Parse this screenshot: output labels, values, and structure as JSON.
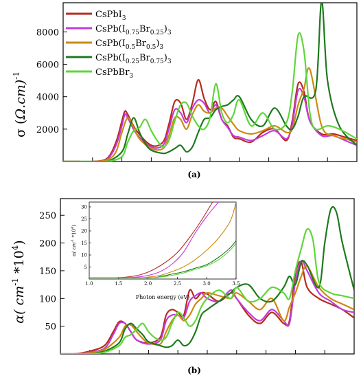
{
  "colors": {
    "CsPbI3": "#b52b1f",
    "CsPb(I0.75Br0.25)3": "#c23bde",
    "CsPb(I0.5Br0.5)3": "#cc8a10",
    "CsPb(I0.25Br0.75)3": "#1d7a1d",
    "CsPbBr3": "#5fd63a"
  },
  "legend": [
    {
      "key": "CsPbI3",
      "base": "CsPbI",
      "parts": [
        {
          "t": "3",
          "sub": true
        }
      ]
    },
    {
      "key": "CsPb(I0.75Br0.25)3",
      "base": "CsPb(I",
      "parts": [
        {
          "t": "0.75",
          "sub": true
        },
        {
          "t": "Br",
          "sub": false
        },
        {
          "t": "0.25",
          "sub": true
        },
        {
          "t": ")",
          "sub": false
        },
        {
          "t": "3",
          "sub": true
        }
      ]
    },
    {
      "key": "CsPb(I0.5Br0.5)3",
      "base": "CsPb(I",
      "parts": [
        {
          "t": "0.5",
          "sub": true
        },
        {
          "t": "Br",
          "sub": false
        },
        {
          "t": "0.5",
          "sub": true
        },
        {
          "t": ")",
          "sub": false
        },
        {
          "t": "3",
          "sub": true
        }
      ]
    },
    {
      "key": "CsPb(I0.25Br0.75)3",
      "base": "CsPb(I",
      "parts": [
        {
          "t": "0.25",
          "sub": true
        },
        {
          "t": "Br",
          "sub": false
        },
        {
          "t": "0.75",
          "sub": true
        },
        {
          "t": ")",
          "sub": false
        },
        {
          "t": "3",
          "sub": true
        }
      ]
    },
    {
      "key": "CsPbBr3",
      "base": "CsPbBr",
      "parts": [
        {
          "t": "3",
          "sub": true
        }
      ]
    }
  ],
  "chart_data": [
    {
      "panel_label": "(a)",
      "type": "line",
      "ylabel": "σ (Ω.cm)-1",
      "ylabel_text": "σ (",
      "ylabel_unit": "Ω.cm)",
      "ylabel_sup": "-1",
      "xlabel": "",
      "yticks": [
        2000,
        4000,
        6000,
        8000
      ],
      "ylim": [
        0,
        9800
      ],
      "xlim": [
        0,
        10
      ],
      "x_tick_labels_shown": false,
      "series": [
        {
          "name": "CsPbI3",
          "x": [
            0,
            0.5,
            1,
            1.5,
            1.8,
            2.0,
            2.1,
            2.2,
            2.5,
            3.0,
            3.4,
            3.6,
            3.8,
            4.0,
            4.2,
            4.4,
            4.6,
            4.8,
            5.0,
            5.2,
            5.4,
            5.6,
            5.8,
            6.0,
            6.4,
            6.8,
            7.2,
            7.6,
            7.8,
            8.0,
            8.2,
            8.4,
            8.8,
            9.2,
            9.6,
            10
          ],
          "y": [
            0,
            0,
            0,
            200,
            1200,
            2500,
            3100,
            2900,
            1900,
            1000,
            1200,
            2300,
            3700,
            3600,
            2600,
            3600,
            5050,
            3900,
            3200,
            3700,
            2600,
            2200,
            1500,
            1400,
            1200,
            1800,
            2000,
            1300,
            2500,
            4800,
            4300,
            2500,
            1700,
            1700,
            1500,
            1300
          ]
        },
        {
          "name": "CsPb(I0.75Br0.25)3",
          "x": [
            0,
            0.5,
            1,
            1.5,
            1.8,
            2.0,
            2.1,
            2.2,
            2.5,
            3.0,
            3.4,
            3.6,
            3.8,
            4.0,
            4.2,
            4.4,
            4.6,
            4.8,
            5.0,
            5.2,
            5.4,
            5.6,
            5.8,
            6.0,
            6.4,
            6.8,
            7.2,
            7.6,
            7.8,
            8.0,
            8.2,
            8.4,
            8.8,
            9.2,
            9.6,
            10
          ],
          "y": [
            0,
            0,
            0,
            150,
            1000,
            2200,
            2900,
            2700,
            1700,
            900,
            1000,
            2000,
            3200,
            3000,
            2400,
            3300,
            3800,
            3600,
            3000,
            3500,
            2600,
            2100,
            1600,
            1500,
            1300,
            1600,
            1900,
            1400,
            2300,
            4400,
            4000,
            2500,
            1600,
            1600,
            1300,
            1000
          ]
        },
        {
          "name": "CsPb(I0.5Br0.5)3",
          "x": [
            0,
            0.5,
            1,
            1.5,
            1.8,
            2.0,
            2.2,
            2.4,
            2.6,
            3.0,
            3.4,
            3.6,
            3.8,
            4.0,
            4.2,
            4.4,
            4.6,
            4.8,
            5.0,
            5.2,
            5.4,
            5.6,
            5.8,
            6.0,
            6.4,
            6.8,
            7.2,
            7.6,
            7.8,
            8.0,
            8.2,
            8.4,
            8.8,
            9.2,
            9.6,
            10
          ],
          "y": [
            0,
            0,
            0,
            100,
            600,
            1800,
            2700,
            2100,
            1400,
            800,
            800,
            1600,
            2700,
            2600,
            2000,
            2900,
            3500,
            3100,
            3000,
            3300,
            3300,
            2800,
            2300,
            1900,
            1700,
            1900,
            2200,
            1800,
            2000,
            3500,
            4500,
            5700,
            2200,
            1600,
            1400,
            1200
          ]
        },
        {
          "name": "CsPb(I0.25Br0.75)3",
          "x": [
            0,
            0.5,
            1,
            1.5,
            2.0,
            2.2,
            2.4,
            2.6,
            2.8,
            3.0,
            3.4,
            3.6,
            3.8,
            4.0,
            4.2,
            4.4,
            4.6,
            4.8,
            5.0,
            5.2,
            5.4,
            5.6,
            5.8,
            6.0,
            6.4,
            6.8,
            7.2,
            7.6,
            7.8,
            8.0,
            8.2,
            8.6,
            8.8,
            9.0,
            9.4,
            10
          ],
          "y": [
            0,
            0,
            0,
            0,
            600,
            1700,
            2700,
            1800,
            1100,
            700,
            500,
            600,
            800,
            1000,
            600,
            900,
            1800,
            2600,
            2700,
            3200,
            3400,
            3500,
            3800,
            4000,
            2600,
            2200,
            3300,
            2200,
            2000,
            2800,
            4000,
            4400,
            9900,
            5000,
            2200,
            1000
          ]
        },
        {
          "name": "CsPbBr3",
          "x": [
            0,
            0.5,
            1,
            1.5,
            2.0,
            2.2,
            2.4,
            2.6,
            2.8,
            3.0,
            3.2,
            3.4,
            3.6,
            3.8,
            4.0,
            4.2,
            4.4,
            4.6,
            4.8,
            5.0,
            5.2,
            5.4,
            5.6,
            5.8,
            6.0,
            6.4,
            6.8,
            7.2,
            7.6,
            7.8,
            8.0,
            8.2,
            8.4,
            8.6,
            9.0,
            9.4,
            10
          ],
          "y": [
            0,
            0,
            0,
            0,
            300,
            1200,
            1900,
            2100,
            2600,
            1900,
            1300,
            900,
            1300,
            2500,
            3500,
            3600,
            2800,
            2200,
            2000,
            2700,
            4800,
            3000,
            2400,
            2900,
            3800,
            2200,
            3000,
            2000,
            2400,
            4300,
            7800,
            6800,
            3000,
            2000,
            2200,
            2000,
            1400
          ]
        }
      ]
    },
    {
      "panel_label": "(b)",
      "type": "line",
      "ylabel": "α( cm-1 *104)",
      "ylabel_text": "α( cm",
      "ylabel_sup1": "-1",
      "ylabel_mid": " *10",
      "ylabel_sup2": "4",
      "ylabel_end": ")",
      "xlabel": "",
      "yticks": [
        50,
        100,
        150,
        200,
        250
      ],
      "ylim": [
        0,
        280
      ],
      "xlim": [
        0,
        10
      ],
      "x_tick_labels_shown": false,
      "series": [
        {
          "name": "CsPbI3",
          "x": [
            0,
            0.5,
            1,
            1.5,
            1.8,
            2.0,
            2.2,
            2.4,
            2.6,
            3.0,
            3.4,
            3.6,
            3.8,
            4.0,
            4.2,
            4.4,
            4.6,
            4.8,
            5.0,
            5.4,
            5.8,
            6.0,
            6.4,
            6.8,
            7.2,
            7.6,
            7.8,
            8.0,
            8.2,
            8.4,
            8.8,
            9.2,
            9.6,
            10
          ],
          "y": [
            0,
            0,
            5,
            15,
            40,
            58,
            55,
            40,
            25,
            20,
            30,
            70,
            80,
            75,
            70,
            115,
            100,
            110,
            108,
            95,
            110,
            100,
            70,
            55,
            75,
            55,
            60,
            145,
            165,
            120,
            100,
            90,
            80,
            65
          ]
        },
        {
          "name": "CsPb(I0.75Br0.25)3",
          "x": [
            0,
            0.5,
            1,
            1.5,
            1.8,
            2.0,
            2.2,
            2.4,
            2.6,
            3.0,
            3.4,
            3.6,
            3.8,
            4.0,
            4.2,
            4.4,
            4.6,
            4.8,
            5.0,
            5.4,
            5.8,
            6.0,
            6.4,
            6.8,
            7.2,
            7.6,
            7.8,
            8.0,
            8.2,
            8.4,
            8.8,
            9.2,
            9.6,
            10
          ],
          "y": [
            0,
            0,
            3,
            10,
            35,
            55,
            55,
            40,
            25,
            18,
            25,
            60,
            70,
            70,
            65,
            95,
            105,
            110,
            100,
            95,
            115,
            100,
            75,
            60,
            80,
            60,
            55,
            130,
            168,
            150,
            110,
            95,
            80,
            75
          ]
        },
        {
          "name": "CsPb(I0.5Br0.5)3",
          "x": [
            0,
            0.5,
            1,
            1.5,
            2.0,
            2.2,
            2.4,
            2.6,
            2.8,
            3.0,
            3.4,
            3.6,
            3.8,
            4.0,
            4.2,
            4.4,
            4.6,
            4.8,
            5.0,
            5.4,
            5.8,
            6.0,
            6.4,
            6.8,
            7.2,
            7.6,
            7.8,
            8.0,
            8.2,
            8.4,
            8.8,
            9.2,
            9.6,
            10
          ],
          "y": [
            0,
            0,
            2,
            8,
            30,
            50,
            52,
            40,
            28,
            20,
            18,
            40,
            60,
            70,
            60,
            70,
            90,
            100,
            110,
            105,
            100,
            110,
            95,
            80,
            100,
            60,
            85,
            110,
            140,
            158,
            120,
            100,
            90,
            80
          ]
        },
        {
          "name": "CsPb(I0.25Br0.75)3",
          "x": [
            0,
            0.5,
            1,
            1.5,
            2.0,
            2.2,
            2.4,
            2.6,
            2.8,
            3.0,
            3.4,
            3.6,
            3.8,
            4.0,
            4.2,
            4.4,
            4.6,
            4.8,
            5.0,
            5.4,
            5.8,
            6.0,
            6.4,
            6.8,
            7.2,
            7.6,
            7.8,
            8.0,
            8.2,
            8.4,
            8.8,
            9.0,
            9.2,
            9.4,
            9.6,
            10
          ],
          "y": [
            0,
            0,
            0,
            5,
            20,
            45,
            55,
            45,
            35,
            22,
            15,
            12,
            15,
            25,
            15,
            20,
            40,
            70,
            80,
            95,
            110,
            120,
            125,
            100,
            95,
            120,
            140,
            125,
            165,
            160,
            120,
            200,
            260,
            255,
            200,
            115
          ]
        },
        {
          "name": "CsPbBr3",
          "x": [
            0,
            0.5,
            1,
            1.5,
            2.0,
            2.2,
            2.4,
            2.6,
            2.8,
            3.0,
            3.2,
            3.4,
            3.6,
            3.8,
            4.0,
            4.2,
            4.4,
            4.6,
            4.8,
            5.0,
            5.4,
            5.8,
            6.0,
            6.4,
            6.8,
            7.2,
            7.6,
            7.8,
            8.0,
            8.2,
            8.4,
            8.6,
            8.8,
            9.2,
            9.6,
            10
          ],
          "y": [
            0,
            0,
            0,
            3,
            15,
            30,
            35,
            45,
            55,
            40,
            30,
            25,
            30,
            55,
            75,
            65,
            50,
            60,
            85,
            100,
            115,
            100,
            120,
            95,
            100,
            120,
            110,
            100,
            150,
            190,
            225,
            205,
            130,
            110,
            105,
            100
          ]
        }
      ]
    },
    {
      "panel_label": "inset",
      "type": "line",
      "xlabel": "Photon energy (eV)",
      "ylabel": "α( cm-1 *104)",
      "ylabel_text": "α( cm",
      "ylabel_sup1": "-1",
      "ylabel_mid": " *10",
      "ylabel_sup2": "4",
      "ylabel_end": ")",
      "xticks": [
        "1.0",
        "1.5",
        "2.0",
        "2.5",
        "3.0",
        "3.5"
      ],
      "yticks": [
        "5",
        "10",
        "15",
        "20",
        "25",
        "30"
      ],
      "xlim": [
        1.0,
        3.5
      ],
      "ylim": [
        0,
        32
      ],
      "series": [
        {
          "name": "CsPbI3",
          "x": [
            1.0,
            1.5,
            1.7,
            1.9,
            2.1,
            2.3,
            2.5,
            2.7,
            2.9,
            3.1
          ],
          "y": [
            0.5,
            0.6,
            1,
            2,
            4,
            7,
            11,
            17,
            24,
            32
          ]
        },
        {
          "name": "CsPb(I0.75Br0.25)3",
          "x": [
            1.0,
            1.5,
            1.8,
            2.0,
            2.2,
            2.4,
            2.6,
            2.8,
            3.0,
            3.2
          ],
          "y": [
            0.5,
            0.5,
            0.8,
            1.5,
            3,
            6,
            11,
            19,
            26,
            32
          ]
        },
        {
          "name": "CsPb(I0.5Br0.5)3",
          "x": [
            1.0,
            1.8,
            2.0,
            2.2,
            2.4,
            2.6,
            2.8,
            3.0,
            3.2,
            3.4,
            3.5
          ],
          "y": [
            0.5,
            0.5,
            0.8,
            1.5,
            3,
            5,
            8,
            12,
            17,
            24,
            32
          ]
        },
        {
          "name": "CsPb(I0.25Br0.75)3",
          "x": [
            1.0,
            2.0,
            2.2,
            2.4,
            2.6,
            2.8,
            3.0,
            3.2,
            3.4,
            3.5
          ],
          "y": [
            0.5,
            0.5,
            1,
            2,
            3,
            4.5,
            6,
            9,
            13,
            16
          ]
        },
        {
          "name": "CsPbBr3",
          "x": [
            1.0,
            2.0,
            2.2,
            2.4,
            2.6,
            2.8,
            3.0,
            3.2,
            3.4,
            3.5
          ],
          "y": [
            0.5,
            0.5,
            0.8,
            1.5,
            2.5,
            4,
            5.5,
            8,
            12,
            15
          ]
        }
      ]
    }
  ]
}
